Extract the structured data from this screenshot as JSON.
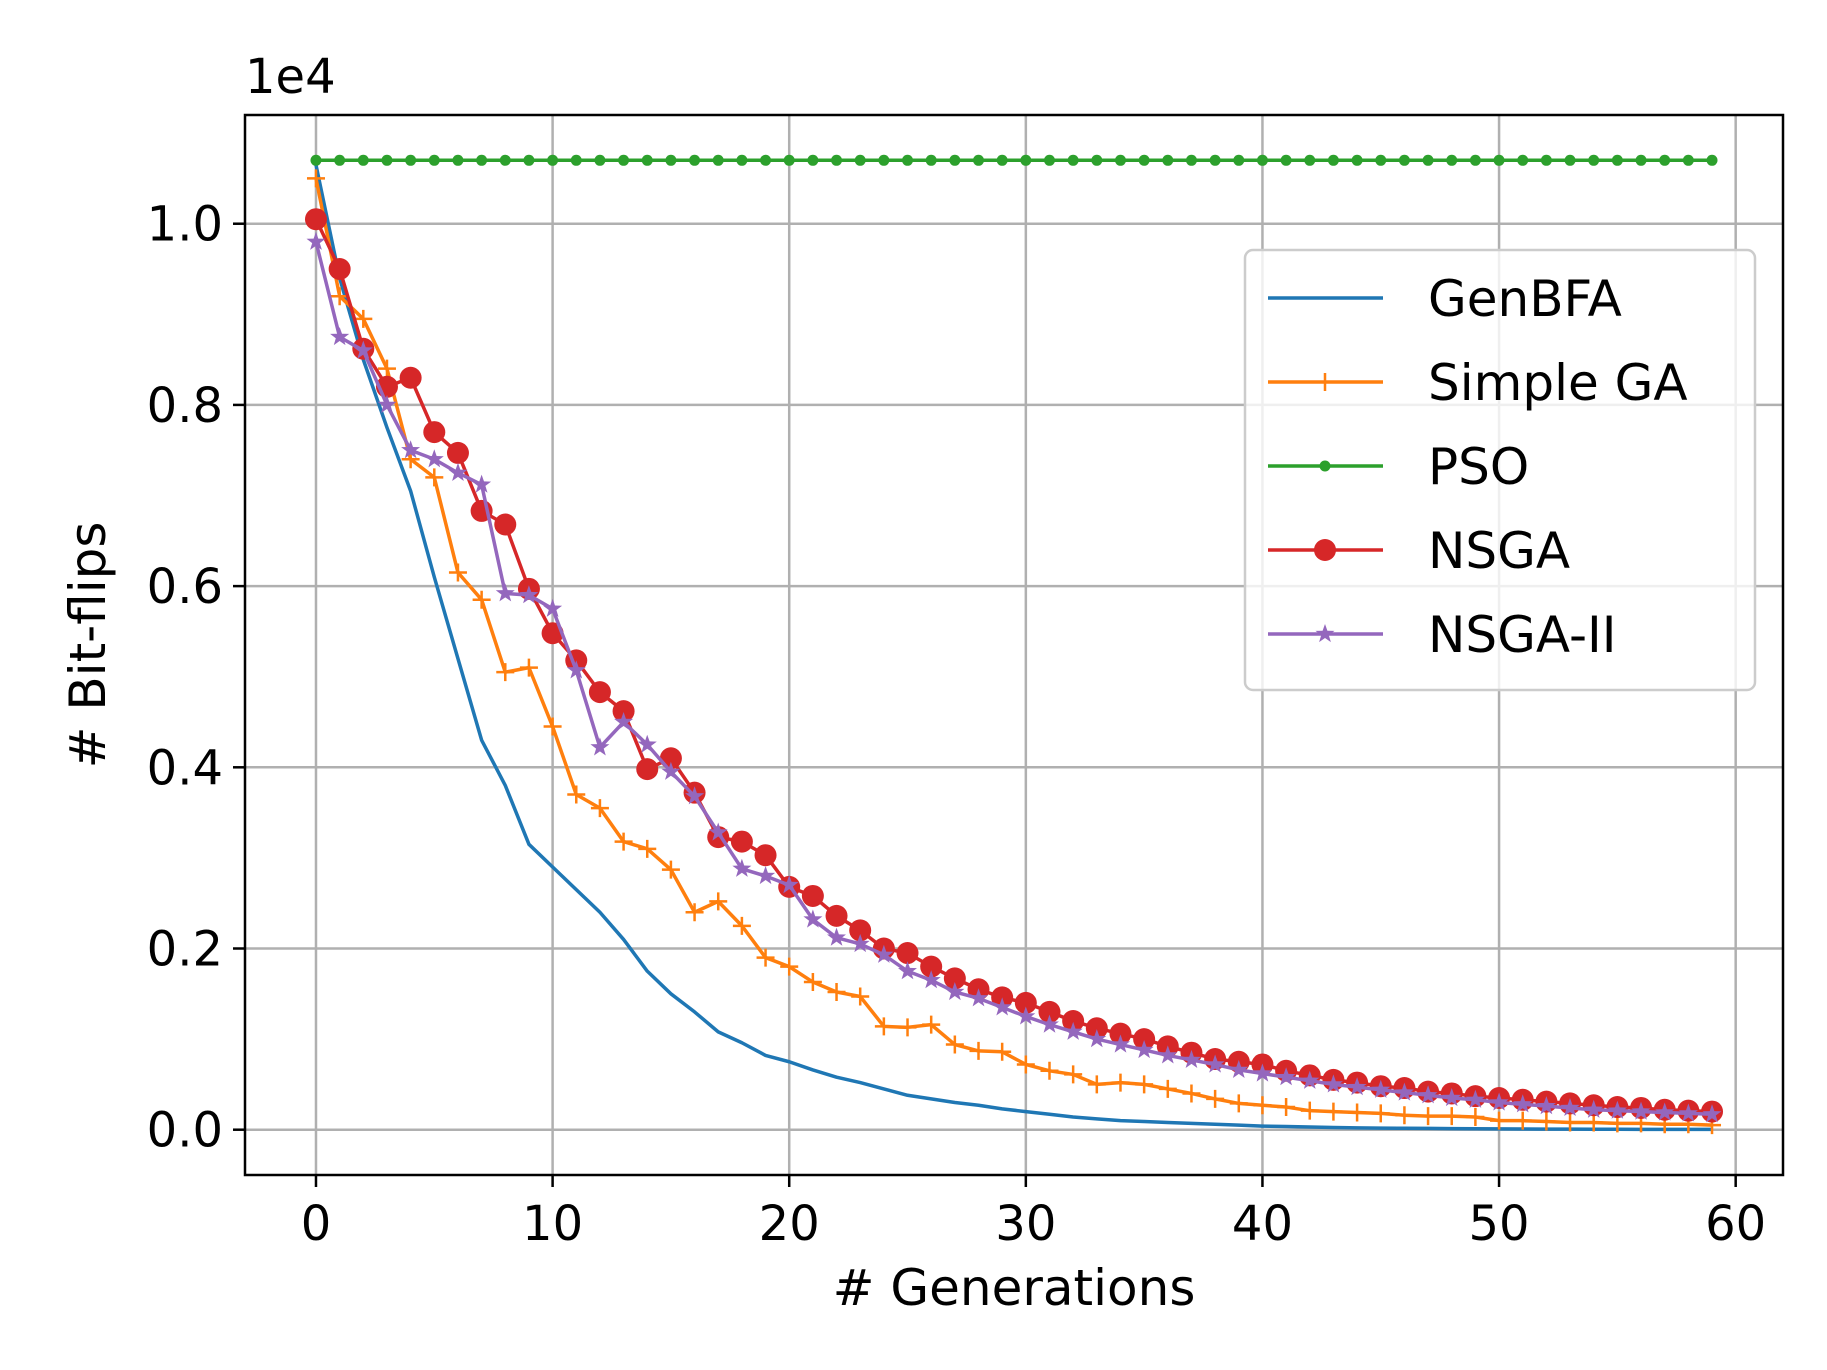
{
  "chart_data": {
    "type": "line",
    "title": "",
    "xlabel": "# Generations",
    "ylabel": "# Bit-flips",
    "y_scale_label": "1e4",
    "xlim": [
      -3,
      62
    ],
    "ylim": [
      -0.05,
      1.12
    ],
    "xticks": [
      0,
      10,
      20,
      30,
      40,
      50,
      60
    ],
    "xtick_labels": [
      "0",
      "10",
      "20",
      "30",
      "40",
      "50",
      "60"
    ],
    "yticks": [
      0.0,
      0.2,
      0.4,
      0.6,
      0.8,
      1.0
    ],
    "ytick_labels": [
      "0.0",
      "0.2",
      "0.4",
      "0.6",
      "0.8",
      "1.0"
    ],
    "grid": true,
    "legend_position": "upper-right",
    "x": [
      0,
      1,
      2,
      3,
      4,
      5,
      6,
      7,
      8,
      9,
      10,
      11,
      12,
      13,
      14,
      15,
      16,
      17,
      18,
      19,
      20,
      21,
      22,
      23,
      24,
      25,
      26,
      27,
      28,
      29,
      30,
      31,
      32,
      33,
      34,
      35,
      36,
      37,
      38,
      39,
      40,
      41,
      42,
      43,
      44,
      45,
      46,
      47,
      48,
      49,
      50,
      51,
      52,
      53,
      54,
      55,
      56,
      57,
      58,
      59
    ],
    "series": [
      {
        "name": "GenBFA",
        "color": "#1f77b4",
        "marker": "none",
        "values": [
          1.065,
          0.94,
          0.85,
          0.775,
          0.705,
          0.61,
          0.52,
          0.43,
          0.38,
          0.315,
          0.29,
          0.265,
          0.24,
          0.21,
          0.175,
          0.15,
          0.13,
          0.108,
          0.096,
          0.082,
          0.075,
          0.066,
          0.058,
          0.052,
          0.045,
          0.038,
          0.034,
          0.03,
          0.027,
          0.023,
          0.02,
          0.017,
          0.014,
          0.012,
          0.01,
          0.009,
          0.008,
          0.007,
          0.006,
          0.005,
          0.004,
          0.0035,
          0.003,
          0.0025,
          0.002,
          0.0018,
          0.0016,
          0.0014,
          0.0012,
          0.001,
          0.0009,
          0.0008,
          0.0007,
          0.0006,
          0.0005,
          0.0005,
          0.0004,
          0.0004,
          0.0003,
          0.0003
        ]
      },
      {
        "name": "Simple GA",
        "color": "#ff7f0e",
        "marker": "plus",
        "values": [
          1.05,
          0.92,
          0.895,
          0.84,
          0.74,
          0.72,
          0.615,
          0.585,
          0.505,
          0.51,
          0.445,
          0.37,
          0.355,
          0.318,
          0.31,
          0.287,
          0.24,
          0.252,
          0.225,
          0.19,
          0.18,
          0.163,
          0.152,
          0.147,
          0.114,
          0.113,
          0.116,
          0.094,
          0.087,
          0.086,
          0.072,
          0.065,
          0.061,
          0.05,
          0.052,
          0.05,
          0.045,
          0.04,
          0.034,
          0.029,
          0.027,
          0.025,
          0.021,
          0.02,
          0.019,
          0.018,
          0.016,
          0.015,
          0.015,
          0.014,
          0.01,
          0.01,
          0.009,
          0.008,
          0.008,
          0.007,
          0.007,
          0.006,
          0.006,
          0.005
        ]
      },
      {
        "name": "PSO",
        "color": "#2ca02c",
        "marker": "dot",
        "values": [
          1.07,
          1.07,
          1.07,
          1.07,
          1.07,
          1.07,
          1.07,
          1.07,
          1.07,
          1.07,
          1.07,
          1.07,
          1.07,
          1.07,
          1.07,
          1.07,
          1.07,
          1.07,
          1.07,
          1.07,
          1.07,
          1.07,
          1.07,
          1.07,
          1.07,
          1.07,
          1.07,
          1.07,
          1.07,
          1.07,
          1.07,
          1.07,
          1.07,
          1.07,
          1.07,
          1.07,
          1.07,
          1.07,
          1.07,
          1.07,
          1.07,
          1.07,
          1.07,
          1.07,
          1.07,
          1.07,
          1.07,
          1.07,
          1.07,
          1.07,
          1.07,
          1.07,
          1.07,
          1.07,
          1.07,
          1.07,
          1.07,
          1.07,
          1.07,
          1.07
        ]
      },
      {
        "name": "NSGA",
        "color": "#d62728",
        "marker": "circle",
        "values": [
          1.005,
          0.95,
          0.862,
          0.82,
          0.83,
          0.77,
          0.747,
          0.683,
          0.668,
          0.597,
          0.548,
          0.518,
          0.483,
          0.462,
          0.398,
          0.41,
          0.372,
          0.323,
          0.318,
          0.303,
          0.268,
          0.258,
          0.236,
          0.22,
          0.2,
          0.195,
          0.18,
          0.167,
          0.155,
          0.146,
          0.14,
          0.13,
          0.12,
          0.112,
          0.106,
          0.1,
          0.092,
          0.085,
          0.078,
          0.075,
          0.072,
          0.065,
          0.06,
          0.055,
          0.052,
          0.048,
          0.046,
          0.042,
          0.04,
          0.037,
          0.035,
          0.033,
          0.031,
          0.029,
          0.027,
          0.025,
          0.024,
          0.022,
          0.021,
          0.02
        ]
      },
      {
        "name": "NSGA-II",
        "color": "#9467bd",
        "marker": "star",
        "values": [
          0.98,
          0.875,
          0.86,
          0.8,
          0.75,
          0.74,
          0.725,
          0.712,
          0.592,
          0.59,
          0.575,
          0.507,
          0.422,
          0.45,
          0.425,
          0.395,
          0.368,
          0.328,
          0.288,
          0.28,
          0.27,
          0.232,
          0.212,
          0.205,
          0.193,
          0.175,
          0.165,
          0.152,
          0.145,
          0.135,
          0.125,
          0.116,
          0.108,
          0.1,
          0.094,
          0.088,
          0.082,
          0.077,
          0.072,
          0.066,
          0.062,
          0.058,
          0.054,
          0.05,
          0.047,
          0.044,
          0.041,
          0.038,
          0.035,
          0.033,
          0.03,
          0.028,
          0.026,
          0.024,
          0.022,
          0.021,
          0.02,
          0.019,
          0.018,
          0.017
        ]
      }
    ]
  }
}
